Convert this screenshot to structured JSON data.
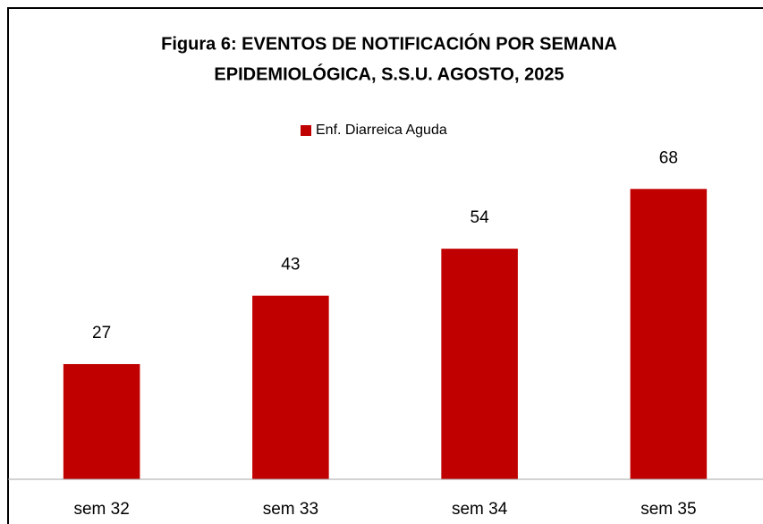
{
  "chart_data": {
    "type": "bar",
    "title": "Figura 6: EVENTOS DE NOTIFICACIÓN POR SEMANA",
    "subtitle": "EPIDEMIOLÓGICA, S.S.U.  AGOSTO, 2025",
    "categories": [
      "sem 32",
      "sem 33",
      "sem 34",
      "sem 35"
    ],
    "series": [
      {
        "name": "Enf. Diarreica Aguda",
        "color": "#c00000",
        "values": [
          27,
          43,
          54,
          68
        ]
      }
    ],
    "ylim": [
      0,
      80
    ],
    "legend": "top"
  }
}
